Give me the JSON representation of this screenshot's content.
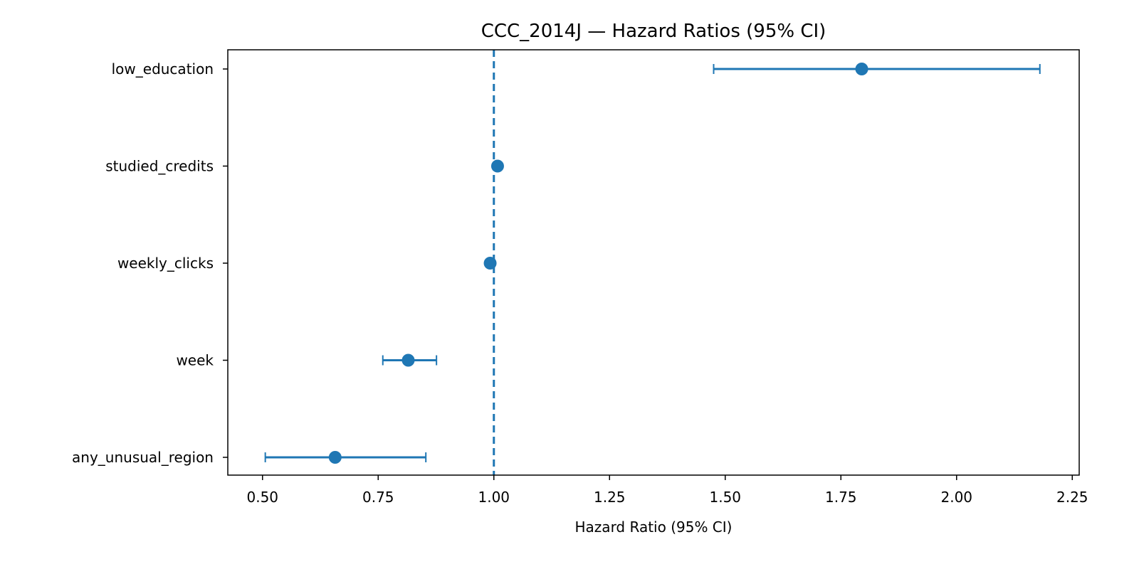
{
  "chart_data": {
    "type": "forest",
    "title": "CCC_2014J — Hazard Ratios (95% CI)",
    "xlabel": "Hazard Ratio (95% CI)",
    "ylabel": "",
    "xlim": [
      0.425,
      2.265
    ],
    "xticks": [
      0.5,
      0.75,
      1.0,
      1.25,
      1.5,
      1.75,
      2.0,
      2.25
    ],
    "xtick_labels": [
      "0.50",
      "0.75",
      "1.00",
      "1.25",
      "1.50",
      "1.75",
      "2.00",
      "2.25"
    ],
    "reference_line": 1.0,
    "grid": false,
    "color": "#1f77b4",
    "rows": [
      {
        "label": "low_education",
        "hr": 1.795,
        "lower": 1.475,
        "upper": 2.18
      },
      {
        "label": "studied_credits",
        "hr": 1.008,
        "lower": 1.004,
        "upper": 1.012
      },
      {
        "label": "weekly_clicks",
        "hr": 0.992,
        "lower": 0.988,
        "upper": 0.996
      },
      {
        "label": "week",
        "hr": 0.815,
        "lower": 0.76,
        "upper": 0.876
      },
      {
        "label": "any_unusual_region",
        "hr": 0.657,
        "lower": 0.506,
        "upper": 0.853
      }
    ]
  }
}
